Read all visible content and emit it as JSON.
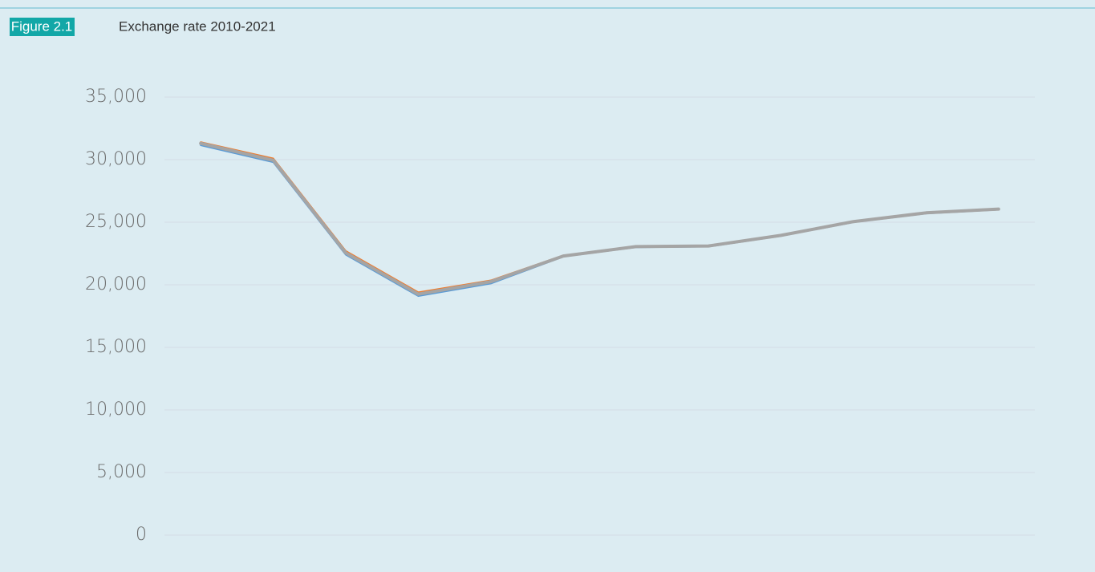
{
  "figure_label": "Figure 2.1",
  "chart_data": {
    "type": "line",
    "title": "Exchange rate 2010-2021",
    "categories": [
      null,
      null,
      null,
      null,
      null,
      null,
      null,
      null,
      null,
      null,
      null,
      null
    ],
    "series": [
      {
        "color": "#5b9bd5",
        "values": [
          31150,
          29800,
          22400,
          19100,
          20100,
          22250,
          23000,
          23050,
          23900,
          25000,
          25700,
          26000
        ]
      },
      {
        "color": "#ed7d31",
        "values": [
          31400,
          30100,
          22700,
          19400,
          20350,
          22350,
          23050,
          23100,
          23950,
          25050,
          25750,
          26000
        ]
      },
      {
        "color": "#a5a5a5",
        "values": [
          31300,
          29950,
          22550,
          19250,
          20250,
          22300,
          23050,
          23100,
          23950,
          25050,
          25750,
          26050
        ]
      }
    ],
    "ylim": [
      0,
      35000
    ],
    "yticks": [
      0,
      {
        "value": 5000,
        "label": "5,000"
      },
      {
        "value": 10000,
        "label": "10,000"
      },
      {
        "value": 15000,
        "label": "15,000"
      },
      {
        "value": 20000,
        "label": "20,000"
      },
      {
        "value": 25000,
        "label": "25,000"
      },
      {
        "value": 30000,
        "label": "30,000"
      },
      {
        "value": 35000,
        "label": "35,000"
      }
    ],
    "grid": true
  }
}
